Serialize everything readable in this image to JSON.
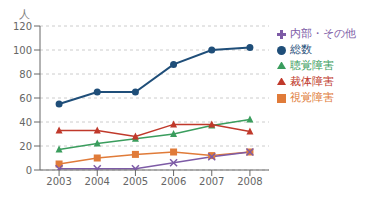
{
  "chart_data": {
    "type": "line",
    "y_label": "人",
    "x": [
      2003,
      2004,
      2005,
      2006,
      2007,
      2008
    ],
    "series": [
      {
        "name": "総数",
        "values": [
          55,
          65,
          65,
          88,
          100,
          102
        ],
        "marker": "circle"
      },
      {
        "name": "視覚障害",
        "values": [
          5,
          10,
          13,
          15,
          12,
          15
        ],
        "marker": "square"
      },
      {
        "name": "聴覚障害",
        "values": [
          17,
          22,
          26,
          30,
          37,
          42
        ],
        "marker": "triangle"
      },
      {
        "name": "裁体障害",
        "values": [
          33,
          33,
          28,
          38,
          38,
          32
        ],
        "marker": "triangle"
      },
      {
        "name": "内部・その他",
        "values": [
          1,
          1,
          1,
          6,
          11,
          15
        ],
        "marker": "cross"
      }
    ],
    "xlim": [
      2002.5,
      2008.5
    ],
    "xticks": [
      2003,
      2004,
      2005,
      2006,
      2007,
      2008
    ],
    "ylim": [
      0,
      120
    ],
    "yticks": [
      0,
      20,
      40,
      60,
      80,
      100,
      120
    ],
    "grid": true,
    "legend": "right"
  }
}
